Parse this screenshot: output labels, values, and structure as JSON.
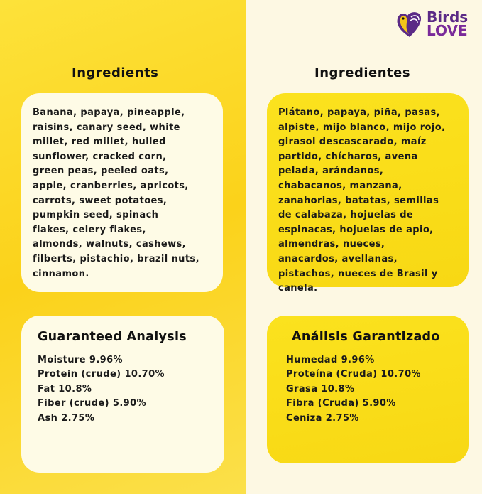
{
  "brand": {
    "name": "Birds LOVE",
    "line1": "Birds",
    "line2": "LOVE",
    "reg": "®",
    "colors": {
      "purple": "#5b2a86",
      "yellow": "#f5c518"
    }
  },
  "left": {
    "heading": "Ingredients",
    "ingredients": [
      "Banana, papaya, pineapple,",
      "raisins, canary seed, white",
      "millet, red millet, hulled",
      "sunflower, cracked corn,",
      "green peas, peeled oats,",
      "apple, cranberries, apricots,",
      "carrots, sweet potatoes,",
      "pumpkin seed, spinach",
      "flakes, celery flakes,",
      "almonds, walnuts, cashews,",
      "filberts, pistachio, brazil nuts,",
      "cinnamon."
    ],
    "analysis_title": "Guaranteed Analysis",
    "analysis": [
      "Moisture  9.96%",
      "Protein (crude) 10.70%",
      "Fat 10.8%",
      "Fiber (crude)  5.90%",
      "Ash 2.75%"
    ]
  },
  "right": {
    "heading": "Ingredientes",
    "ingredients": [
      "Plátano, papaya, piña, pasas,",
      "alpiste, mijo blanco, mijo rojo,",
      "girasol descascarado, maíz",
      "partido, chícharos, avena",
      "pelada, arándanos,",
      "chabacanos, manzana,",
      "zanahorias, batatas, semillas",
      "de calabaza, hojuelas de",
      "espinacas, hojuelas de apio,",
      "almendras, nueces,",
      "anacardos, avellanas,",
      "pistachos, nueces de Brasil y",
      "canela."
    ],
    "analysis_title": "Análisis Garantizado",
    "analysis": [
      "Humedad  9.96%",
      "Proteína (Cruda) 10.70%",
      "Grasa 10.8%",
      "Fibra (Cruda) 5.90%",
      "Ceniza  2.75%"
    ]
  }
}
